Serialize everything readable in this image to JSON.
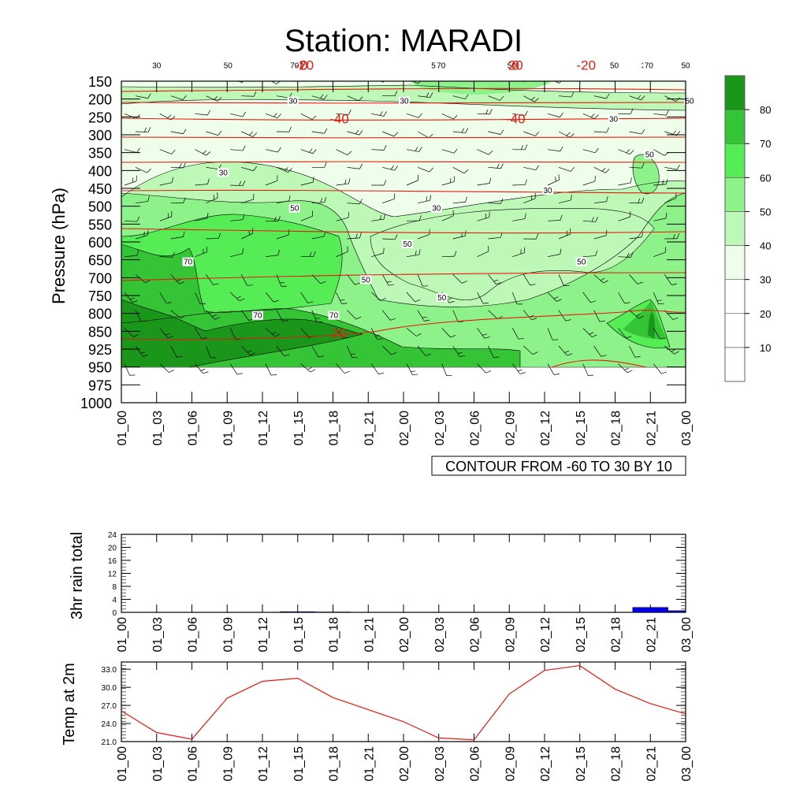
{
  "title": "Station: MARADI",
  "footer_label": "CONTOUR FROM -60 TO 30 BY 10",
  "colors": {
    "levels": [
      "#ffffff",
      "#ffffff",
      "#ffffff",
      "#eefeea",
      "#bdf8b7",
      "#8ef28a",
      "#55ec55",
      "#35c435",
      "#1a961a"
    ],
    "line_contour": "#000000",
    "temp_contour": "#e8190e",
    "rain_bar": "#0000ee",
    "temp_line": "#e8190e"
  },
  "chart_data": [
    {
      "type": "heatmap",
      "ylabel": "Pressure (hPa)",
      "x_ticks": [
        "01_00",
        "01_03",
        "01_06",
        "01_09",
        "01_12",
        "01_15",
        "01_18",
        "01_21",
        "02_00",
        "02_03",
        "02_06",
        "02_09",
        "02_12",
        "02_15",
        "02_18",
        "02_21",
        "03_00"
      ],
      "y_ticks": [
        150,
        200,
        250,
        300,
        350,
        400,
        450,
        500,
        550,
        600,
        650,
        700,
        750,
        800,
        850,
        925,
        950,
        975,
        1000
      ],
      "fill_colorbar_ticks": [
        10,
        20,
        30,
        40,
        50,
        60,
        70,
        80
      ],
      "line_contour_labels": [
        {
          "x": "01_15",
          "y": 200,
          "v": "30"
        },
        {
          "x": "02_00",
          "y": 200,
          "v": "30"
        },
        {
          "x": "02_03",
          "y": 175,
          "v": "50"
        },
        {
          "x": "02_09",
          "y": 225,
          "v": "30"
        },
        {
          "x": "02_18",
          "y": 250,
          "v": "30"
        },
        {
          "x": "03_00",
          "y": 200,
          "v": "50"
        },
        {
          "x": "01_03",
          "y": 275,
          "v": "30"
        },
        {
          "x": "01_09",
          "y": 400,
          "v": "30"
        },
        {
          "x": "01_15",
          "y": 425,
          "v": "30"
        },
        {
          "x": "02_03",
          "y": 500,
          "v": "30"
        },
        {
          "x": "02_12",
          "y": 450,
          "v": "30"
        },
        {
          "x": "02_21",
          "y": 350,
          "v": "50"
        },
        {
          "x": "02_21",
          "y": 425,
          "v": "30"
        },
        {
          "x": "01_09",
          "y": 525,
          "v": "50"
        },
        {
          "x": "01_15",
          "y": 500,
          "v": "50"
        },
        {
          "x": "02_09",
          "y": 525,
          "v": "50"
        },
        {
          "x": "02_18",
          "y": 575,
          "v": "50"
        },
        {
          "x": "02_00",
          "y": 600,
          "v": "50"
        },
        {
          "x": "03_00",
          "y": 625,
          "v": "50"
        },
        {
          "x": "01_06",
          "y": 650,
          "v": "70"
        },
        {
          "x": "02_15",
          "y": 650,
          "v": "50"
        },
        {
          "x": "01_21",
          "y": 700,
          "v": "50"
        },
        {
          "x": "02_03",
          "y": 750,
          "v": "50"
        },
        {
          "x": "02_18",
          "y": 775,
          "v": "50"
        },
        {
          "x": "01_12",
          "y": 800,
          "v": "70"
        },
        {
          "x": "01_18",
          "y": 800,
          "v": "70"
        },
        {
          "x": "01_15",
          "y": 875,
          "v": "70"
        },
        {
          "x": "02_03",
          "y": 875,
          "v": "70"
        },
        {
          "x": "02_21",
          "y": 875,
          "v": "70"
        }
      ],
      "temp_contour_labels": [
        {
          "x": "01_18",
          "y": 250,
          "v": "-40"
        },
        {
          "x": "02_09",
          "y": 250,
          "v": "-40"
        },
        {
          "x": "01_15",
          "y": 375,
          "v": "-20"
        },
        {
          "x": "02_15",
          "y": 375,
          "v": "-20"
        },
        {
          "x": "01_15",
          "y": 575,
          "v": "0"
        },
        {
          "x": "02_09",
          "y": 575,
          "v": "0"
        },
        {
          "x": "01_18",
          "y": 850,
          "v": "20"
        },
        {
          "x": "02_09",
          "y": 825,
          "v": "20"
        }
      ]
    },
    {
      "type": "bar",
      "ylabel": "3hr rain total",
      "y_ticks": [
        "0",
        "4",
        "8",
        "12",
        "16",
        "20",
        "24"
      ],
      "ylim": [
        0,
        24
      ],
      "categories": [
        "01_00",
        "01_03",
        "01_06",
        "01_09",
        "01_12",
        "01_15",
        "01_18",
        "01_21",
        "02_00",
        "02_03",
        "02_06",
        "02_09",
        "02_12",
        "02_15",
        "02_18",
        "02_21",
        "03_00"
      ],
      "values": [
        0,
        0,
        0,
        0,
        0.05,
        0.2,
        0.1,
        0,
        0,
        0,
        0,
        0,
        0,
        0,
        0,
        1.5,
        0.5
      ]
    },
    {
      "type": "line",
      "ylabel": "Temp at 2m",
      "y_ticks": [
        "21.0",
        "24.0",
        "27.0",
        "30.0",
        "33.0"
      ],
      "ylim": [
        21,
        34.2
      ],
      "categories": [
        "01_00",
        "01_03",
        "01_06",
        "01_09",
        "01_12",
        "01_15",
        "01_18",
        "01_21",
        "02_00",
        "02_03",
        "02_06",
        "02_09",
        "02_12",
        "02_15",
        "02_18",
        "02_21",
        "03_00"
      ],
      "values": [
        26.1,
        22.5,
        21.4,
        28.2,
        31.0,
        31.5,
        28.3,
        26.3,
        24.3,
        21.6,
        21.3,
        28.9,
        32.8,
        33.6,
        29.7,
        27.3,
        25.6
      ]
    }
  ]
}
